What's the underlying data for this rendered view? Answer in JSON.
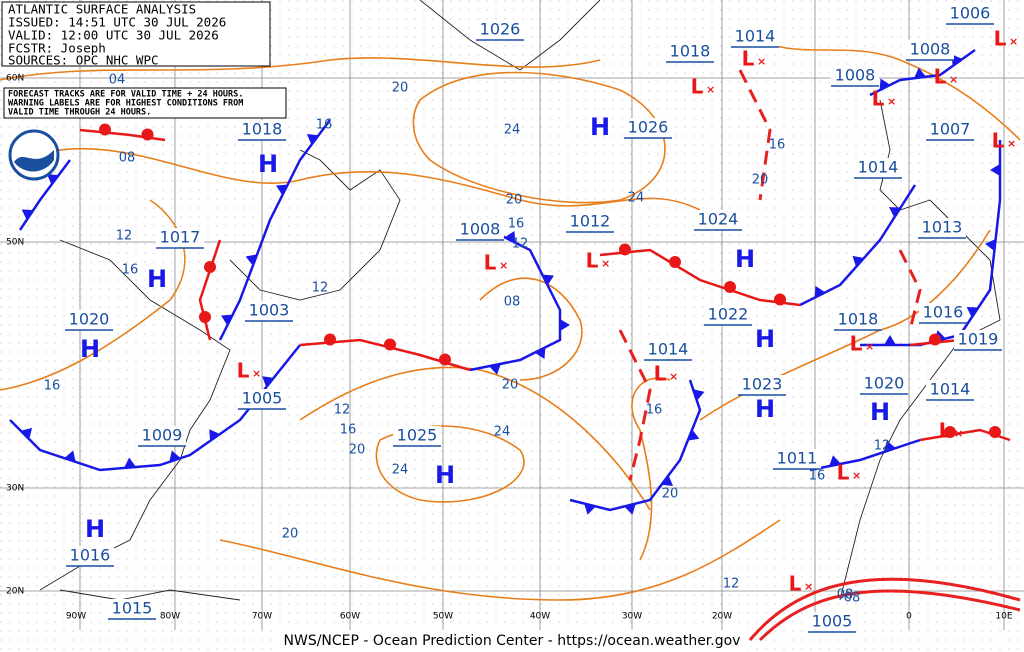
{
  "header": {
    "title": "ATLANTIC SURFACE ANALYSIS",
    "lines": [
      "ISSUED: 14:51 UTC 30 JUL 2026",
      "VALID: 12:00 UTC 30 JUL 2026",
      "FCSTR: Joseph",
      "SOURCES: OPC NHC WPC"
    ]
  },
  "note": {
    "lines": [
      "FORECAST TRACKS ARE FOR VALID TIME + 24 HOURS.",
      "WARNING LABELS ARE FOR HIGHEST CONDITIONS FROM",
      "VALID TIME THROUGH 24 HOURS."
    ]
  },
  "pressure_labels": [
    "1026",
    "1018",
    "1014",
    "1006",
    "1008",
    "1008",
    "1007",
    "1014",
    "1013",
    "1024",
    "1022",
    "1016",
    "1019",
    "1018",
    "1014",
    "1023",
    "1020",
    "1014",
    "1011",
    "1005",
    "1026",
    "1012",
    "1008",
    "1018",
    "1017",
    "1020",
    "1003",
    "1005",
    "1009",
    "1025",
    "1016",
    "1015"
  ],
  "centers": [
    "H",
    "H",
    "H",
    "H",
    "H",
    "H",
    "H",
    "H",
    "H",
    "H",
    "L",
    "L",
    "L",
    "L",
    "L",
    "L",
    "L",
    "L",
    "L",
    "L",
    "L",
    "L",
    "L",
    "L"
  ],
  "isobar_labels": [
    "04",
    "08",
    "12",
    "16",
    "20",
    "24",
    "20",
    "16",
    "12",
    "08",
    "24",
    "20",
    "24",
    "16",
    "12",
    "16",
    "20",
    "24",
    "20",
    "16",
    "12",
    "08",
    "12",
    "16",
    "20",
    "20",
    "16",
    "08",
    "12",
    "16"
  ],
  "latitudes": [
    "60N",
    "50N",
    "30N",
    "20N"
  ],
  "longitudes": [
    "90W",
    "80W",
    "70W",
    "60W",
    "50W",
    "40W",
    "30W",
    "20W",
    "0",
    "10E"
  ],
  "footer": "NWS/NCEP - Ocean Prediction Center - https://ocean.weather.gov"
}
